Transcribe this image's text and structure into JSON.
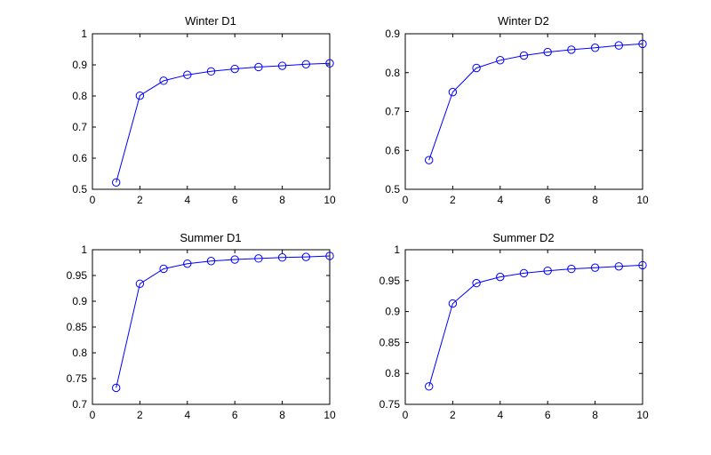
{
  "chart_data": [
    {
      "type": "line",
      "title": "Winter D1",
      "x": [
        1,
        2,
        3,
        4,
        5,
        6,
        7,
        8,
        9,
        10
      ],
      "series": [
        {
          "values": [
            0.522,
            0.801,
            0.849,
            0.868,
            0.879,
            0.887,
            0.893,
            0.897,
            0.902,
            0.905
          ]
        }
      ],
      "xlim": [
        0,
        10
      ],
      "ylim": [
        0.5,
        1
      ],
      "xticks": [
        0,
        2,
        4,
        6,
        8,
        10
      ],
      "yticks": [
        0.5,
        0.6,
        0.7,
        0.8,
        0.9,
        1
      ],
      "ytick_labels": [
        "0.5",
        "0.6",
        "0.7",
        "0.8",
        "0.9",
        "1"
      ],
      "grid": false,
      "color": "#0000ff",
      "marker": "circle"
    },
    {
      "type": "line",
      "title": "Winter D2",
      "x": [
        1,
        2,
        3,
        4,
        5,
        6,
        7,
        8,
        9,
        10
      ],
      "series": [
        {
          "values": [
            0.575,
            0.75,
            0.812,
            0.832,
            0.844,
            0.853,
            0.859,
            0.864,
            0.87,
            0.874
          ]
        }
      ],
      "xlim": [
        0,
        10
      ],
      "ylim": [
        0.5,
        0.9
      ],
      "xticks": [
        0,
        2,
        4,
        6,
        8,
        10
      ],
      "yticks": [
        0.5,
        0.6,
        0.7,
        0.8,
        0.9
      ],
      "ytick_labels": [
        "0.5",
        "0.6",
        "0.7",
        "0.8",
        "0.9"
      ],
      "grid": false,
      "color": "#0000ff",
      "marker": "circle"
    },
    {
      "type": "line",
      "title": "Summer D1",
      "x": [
        1,
        2,
        3,
        4,
        5,
        6,
        7,
        8,
        9,
        10
      ],
      "series": [
        {
          "values": [
            0.732,
            0.934,
            0.963,
            0.973,
            0.978,
            0.981,
            0.983,
            0.985,
            0.986,
            0.988
          ]
        }
      ],
      "xlim": [
        0,
        10
      ],
      "ylim": [
        0.7,
        1
      ],
      "xticks": [
        0,
        2,
        4,
        6,
        8,
        10
      ],
      "yticks": [
        0.7,
        0.75,
        0.8,
        0.85,
        0.9,
        0.95,
        1
      ],
      "ytick_labels": [
        "0.7",
        "0.75",
        "0.8",
        "0.85",
        "0.9",
        "0.95",
        "1"
      ],
      "grid": false,
      "color": "#0000ff",
      "marker": "circle"
    },
    {
      "type": "line",
      "title": "Summer D2",
      "x": [
        1,
        2,
        3,
        4,
        5,
        6,
        7,
        8,
        9,
        10
      ],
      "series": [
        {
          "values": [
            0.779,
            0.913,
            0.946,
            0.956,
            0.962,
            0.966,
            0.969,
            0.971,
            0.973,
            0.975
          ]
        }
      ],
      "xlim": [
        0,
        10
      ],
      "ylim": [
        0.75,
        1
      ],
      "xticks": [
        0,
        2,
        4,
        6,
        8,
        10
      ],
      "yticks": [
        0.75,
        0.8,
        0.85,
        0.9,
        0.95,
        1
      ],
      "ytick_labels": [
        "0.75",
        "0.8",
        "0.85",
        "0.9",
        "0.95",
        "1"
      ],
      "grid": false,
      "color": "#0000ff",
      "marker": "circle"
    }
  ]
}
